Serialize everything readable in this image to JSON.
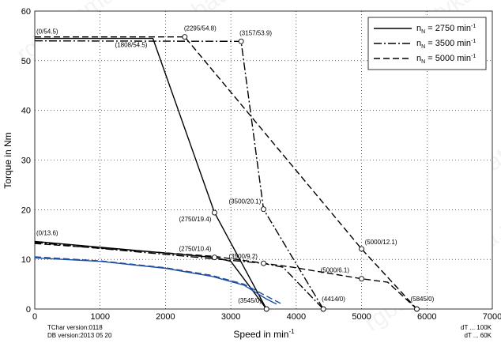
{
  "chart_data": {
    "type": "line",
    "xlabel": "Speed in min",
    "xlabel_sup": "-1",
    "ylabel": "Torque in Nm",
    "xlim": [
      0,
      7000
    ],
    "ylim": [
      0,
      60
    ],
    "xticks": [
      0,
      1000,
      2000,
      3000,
      4000,
      5000,
      6000,
      7000
    ],
    "yticks": [
      0,
      10,
      20,
      30,
      40,
      50,
      60
    ],
    "grid": true,
    "legend_position": "top-right",
    "legend": [
      {
        "pre": "n",
        "sub": "N",
        "text": " = 2750 min",
        "sup": "-1",
        "style": "solid"
      },
      {
        "pre": "n",
        "sub": "N",
        "text": " = 3500 min",
        "sup": "-1",
        "style": "dashdot"
      },
      {
        "pre": "n",
        "sub": "N",
        "text": " = 5000 min",
        "sup": "-1",
        "style": "dashed"
      }
    ],
    "series": [
      {
        "style": "solid",
        "color": "#000000",
        "points": [
          [
            0,
            54.5
          ],
          [
            1808,
            54.5
          ],
          [
            2750,
            19.4
          ],
          [
            3545,
            0
          ]
        ]
      },
      {
        "style": "solid",
        "color": "#000000",
        "points": [
          [
            0,
            13.6
          ],
          [
            2750,
            10.4
          ],
          [
            3000,
            9.6
          ],
          [
            3545,
            0
          ]
        ]
      },
      {
        "style": "dashdot",
        "color": "#000000",
        "points": [
          [
            0,
            54.0
          ],
          [
            3157,
            53.9
          ],
          [
            3500,
            20.1
          ],
          [
            4414,
            0
          ]
        ]
      },
      {
        "style": "dashdot",
        "color": "#000000",
        "points": [
          [
            0,
            13.4
          ],
          [
            3500,
            9.2
          ],
          [
            3800,
            8.4
          ],
          [
            4414,
            0
          ]
        ]
      },
      {
        "style": "dashed",
        "color": "#000000",
        "points": [
          [
            0,
            54.8
          ],
          [
            2295,
            54.8
          ],
          [
            5000,
            12.1
          ],
          [
            5845,
            0
          ]
        ]
      },
      {
        "style": "dashed",
        "color": "#000000",
        "points": [
          [
            0,
            13.2
          ],
          [
            2750,
            10.6
          ],
          [
            3950,
            8.4
          ],
          [
            5000,
            6.1
          ],
          [
            5400,
            5.4
          ],
          [
            5845,
            0
          ]
        ]
      },
      {
        "style": "solid",
        "color": "#1f4fa0",
        "points": [
          [
            0,
            10.3
          ],
          [
            1000,
            9.6
          ],
          [
            2000,
            8.2
          ],
          [
            2700,
            6.6
          ],
          [
            3200,
            4.8
          ],
          [
            3545,
            2.0
          ],
          [
            3700,
            1.0
          ]
        ]
      },
      {
        "style": "dashed",
        "color": "#1f4fa0",
        "points": [
          [
            0,
            10.5
          ],
          [
            1000,
            9.7
          ],
          [
            2000,
            8.3
          ],
          [
            2700,
            6.8
          ],
          [
            3200,
            5.0
          ],
          [
            3545,
            2.6
          ],
          [
            3780,
            1.0
          ]
        ]
      }
    ],
    "markers": [
      [
        2295,
        54.8
      ],
      [
        3157,
        53.9
      ],
      [
        2750,
        19.4
      ],
      [
        3500,
        20.1
      ],
      [
        5000,
        12.1
      ],
      [
        2750,
        10.4
      ],
      [
        3500,
        9.2
      ],
      [
        5000,
        6.1
      ],
      [
        3545,
        0
      ],
      [
        4414,
        0
      ],
      [
        5845,
        0
      ]
    ],
    "annotations": [
      {
        "text": "(0/54.5)",
        "x": 0,
        "y": 54.5
      },
      {
        "text": "(1808/54.5)",
        "x": 1808,
        "y": 54.5
      },
      {
        "text": "(2295/54.8)",
        "x": 2295,
        "y": 54.8
      },
      {
        "text": "(3157/53.9)",
        "x": 3157,
        "y": 53.9
      },
      {
        "text": "(2750/19.4)",
        "x": 2750,
        "y": 19.4
      },
      {
        "text": "(3500/20.1)",
        "x": 3500,
        "y": 20.1
      },
      {
        "text": "(5000/12.1)",
        "x": 5000,
        "y": 12.1
      },
      {
        "text": "(0/13.6)",
        "x": 0,
        "y": 13.6
      },
      {
        "text": "(2750/10.4)",
        "x": 2750,
        "y": 10.4
      },
      {
        "text": "(3500/9.2)",
        "x": 3500,
        "y": 9.2
      },
      {
        "text": "(5000/6.1)",
        "x": 5000,
        "y": 6.1
      },
      {
        "text": "(3545/0)",
        "x": 3545,
        "y": 0
      },
      {
        "text": "(4414/0)",
        "x": 4414,
        "y": 0
      },
      {
        "text": "(5845/0)",
        "x": 5845,
        "y": 0
      }
    ]
  },
  "footer": {
    "tchar": "TChar version:0118",
    "db": "DB version:2013 05 20",
    "dt_black": "dT ... 100K",
    "dt_blue": "dT ... 60K",
    "dt_blue_color": "#1f4fa0"
  },
  "watermark": "rgbautomatyka.pl"
}
